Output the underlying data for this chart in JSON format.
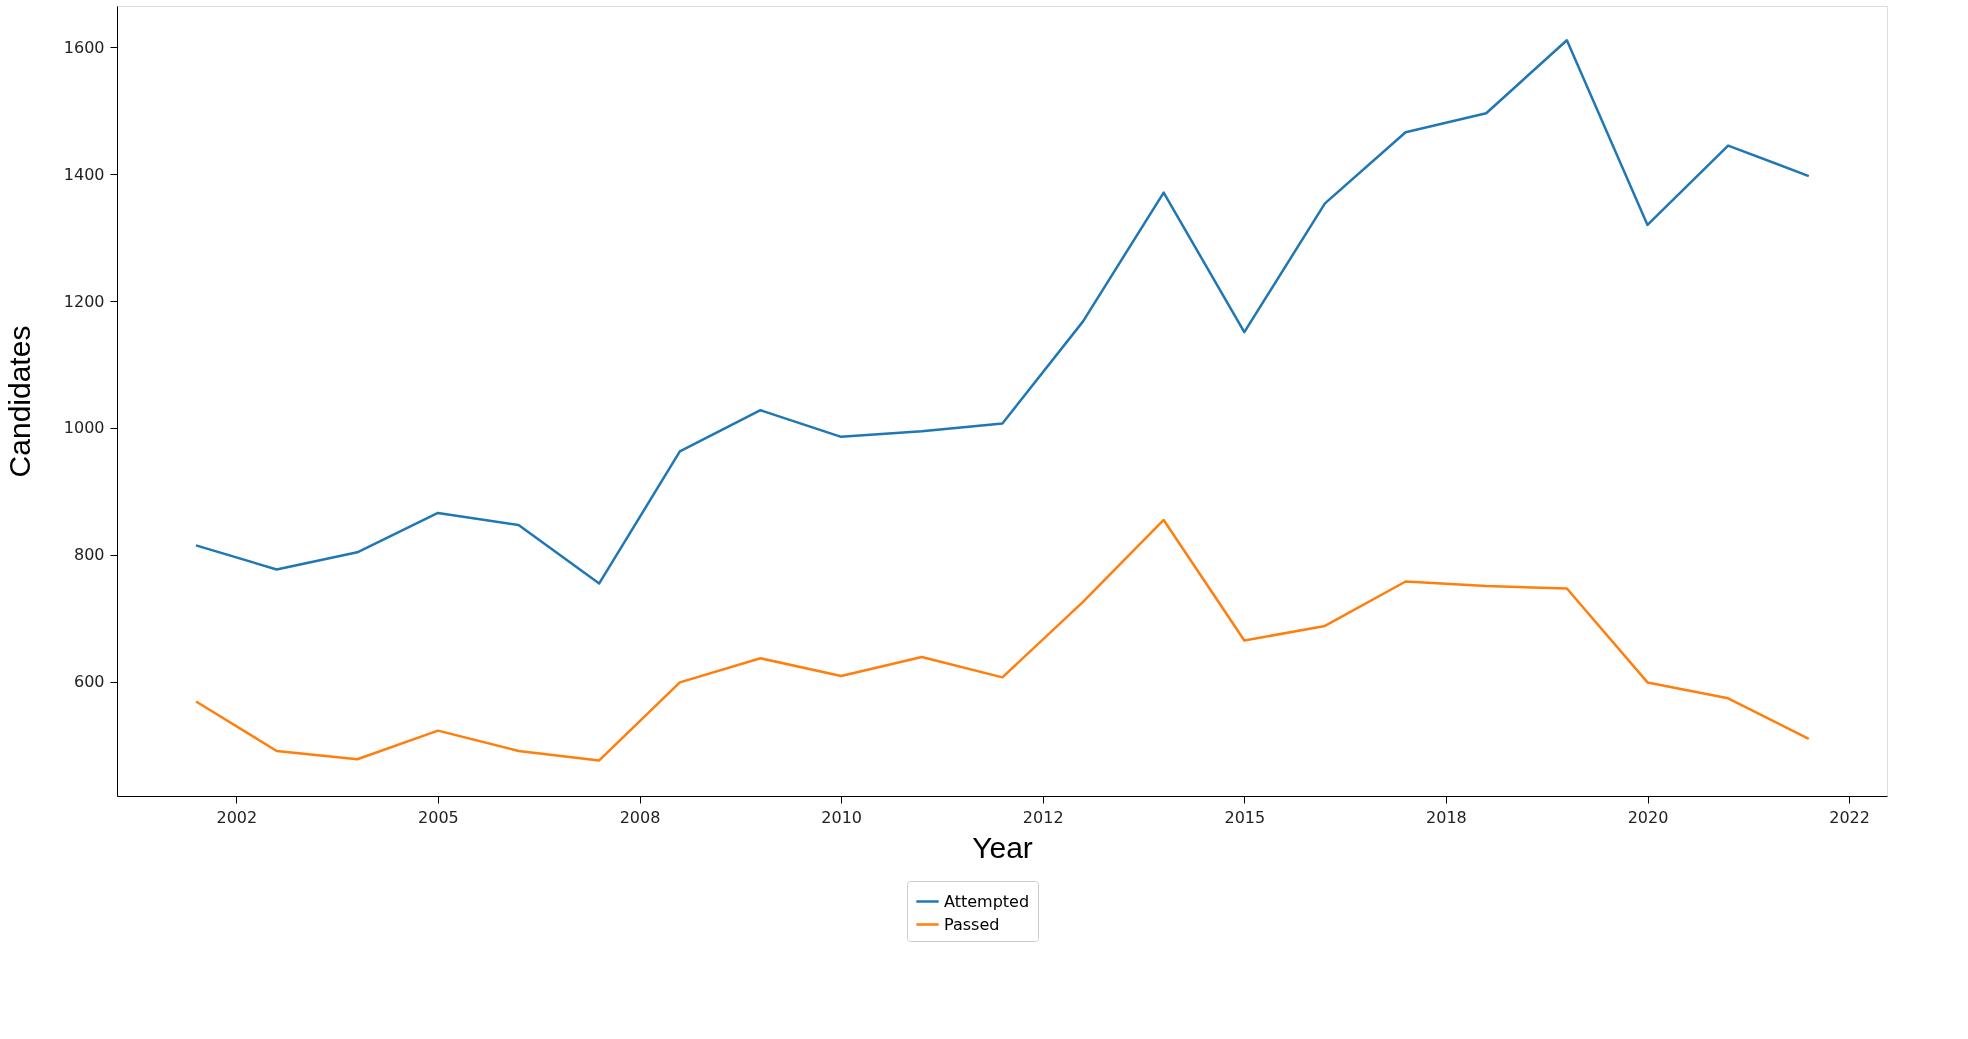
{
  "chart_data": {
    "type": "line",
    "xlabel": "Year",
    "ylabel": "Candidates",
    "x": [
      2002,
      2003,
      2004,
      2005,
      2006,
      2007,
      2008,
      2009,
      2010,
      2011,
      2012,
      2013,
      2014,
      2015,
      2016,
      2017,
      2018,
      2019,
      2020,
      2021,
      2022
    ],
    "series": [
      {
        "name": "Attempted",
        "color": "#1f77b4",
        "values": [
          815,
          777,
          804,
          866,
          847,
          755,
          963,
          1028,
          986,
          995,
          1007,
          1168,
          1371,
          1151,
          1354,
          1466,
          1496,
          1611,
          1320,
          1445,
          1397
        ]
      },
      {
        "name": "Passed",
        "color": "#ff7f0e",
        "values": [
          569,
          491,
          478,
          523,
          491,
          476,
          599,
          637,
          609,
          639,
          607,
          726,
          855,
          665,
          688,
          758,
          751,
          747,
          599,
          574,
          510
        ]
      }
    ],
    "xlim": [
      2001.02,
      2022.97
    ],
    "xticks": [
      {
        "value": 2002.5,
        "label": "2002"
      },
      2005,
      {
        "value": 2007.5,
        "label": "2008"
      },
      2010,
      {
        "value": 2012.5,
        "label": "2012"
      },
      2015,
      {
        "value": 2017.5,
        "label": "2018"
      },
      2020,
      {
        "value": 2022.5,
        "label": "2022"
      }
    ],
    "ylim": [
      420,
      1665
    ],
    "yticks": [
      600,
      800,
      1000,
      1200,
      1400,
      1600
    ],
    "grid": false,
    "legend": "bottom",
    "marker": "none",
    "line_style": "solid"
  }
}
